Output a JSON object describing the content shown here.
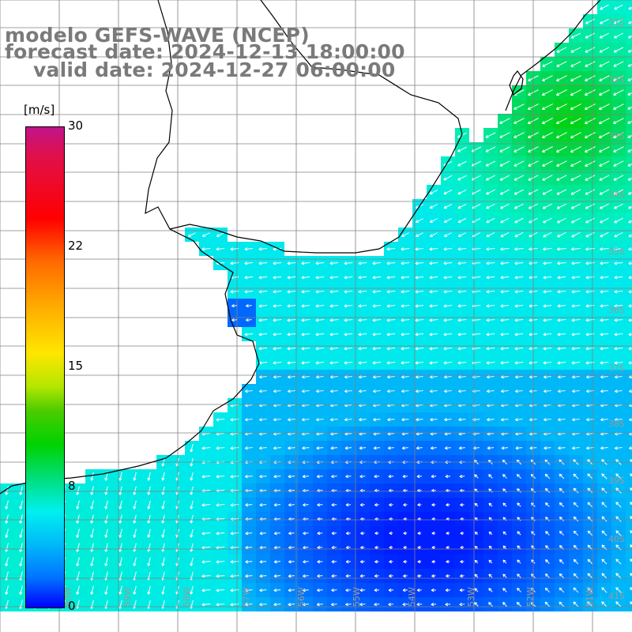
{
  "title": {
    "line1": "modelo GEFS-WAVE (NCEP)",
    "line2": "forecast date: 2024-12-13 18:00:00",
    "line3": "valid date: 2024-12-27 06:00:00"
  },
  "colorbar": {
    "unit": "[m/s]",
    "ticks": [
      "30",
      "22",
      "15",
      "8",
      "0"
    ],
    "tick_values": [
      30,
      22,
      15,
      8,
      0
    ],
    "colors": [
      "#0000ff",
      "#00b8f8",
      "#00f0f0",
      "#00d200",
      "#ffe600",
      "#ff6a00",
      "#ff0000",
      "#c0148a"
    ]
  },
  "map": {
    "variable": "wind speed and direction",
    "land_color": "#ffffff",
    "coastline_color": "#000000",
    "grid_color": "#808080",
    "arrow_color": "#ffffff"
  },
  "lat_labels": [
    "31S",
    "32S",
    "33S",
    "34S",
    "35S",
    "36S",
    "37S",
    "38S",
    "39S",
    "40S",
    "41S"
  ],
  "lon_labels": [
    "60W",
    "59W",
    "58W",
    "57W",
    "56W",
    "55W",
    "54W",
    "53W",
    "52W",
    "51W"
  ],
  "fields": {
    "note_regions": [
      "north coastal zone (speed ~12-14 m/s)",
      "central shelf (~8-9 m/s)",
      "south-east open ocean (~3-5 m/s)",
      "south-west coast (~8-9 m/s)"
    ]
  }
}
